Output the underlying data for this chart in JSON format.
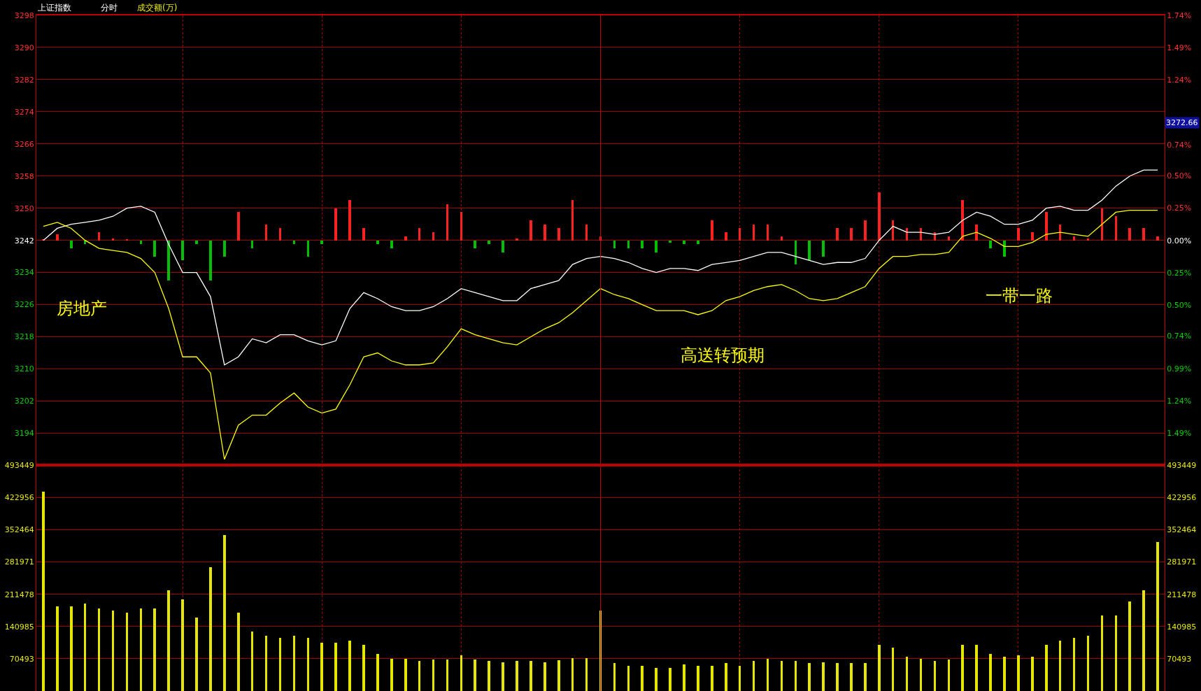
{
  "chart_data": [
    {
      "type": "line",
      "title": "上证指数",
      "subtitle": "分时",
      "categories": [
        null,
        null,
        null,
        null,
        null,
        null,
        null,
        null,
        null,
        null,
        null,
        null,
        null,
        null,
        null,
        null,
        null,
        null,
        null,
        null,
        null,
        null,
        null,
        null,
        null,
        null,
        null,
        null,
        null,
        null,
        null,
        null,
        null,
        null,
        null,
        null,
        null,
        null,
        null,
        null,
        null,
        null,
        null,
        null,
        null,
        null,
        null,
        null,
        null,
        null,
        null,
        null,
        null,
        null,
        null,
        null,
        null,
        null,
        null,
        null,
        null,
        null,
        null,
        null,
        null,
        null,
        null,
        null,
        null,
        null,
        null,
        null,
        null,
        null,
        null,
        null,
        null,
        null,
        null,
        null,
        null
      ],
      "series": [
        {
          "type": "bar",
          "base": [
            3242,
            3242,
            3242,
            3242,
            3242,
            3242,
            3242,
            3242,
            3242,
            3242,
            3242,
            3242,
            3242,
            3242,
            3242,
            3242,
            3242,
            3242,
            3242,
            3242,
            3242,
            3242,
            3242,
            3242,
            3242,
            3242,
            3242,
            3242,
            3242,
            3242,
            3242,
            3242,
            3242,
            3242,
            3242,
            3242,
            3242,
            3242,
            3242,
            3242,
            3242,
            3242,
            3242,
            3242,
            3242,
            3242,
            3242,
            3242,
            3242,
            3242,
            3242,
            3242,
            3242,
            3242,
            3242,
            3242,
            3242,
            3242,
            3242,
            3242,
            3242,
            3242,
            3242,
            3242,
            3242,
            3242,
            3242,
            3242,
            3242,
            3242,
            3242,
            3242,
            3242,
            3242,
            3242,
            3242,
            3242,
            3242,
            3242,
            3242,
            3242
          ],
          "values": [
            0.3,
            1.5,
            -2,
            -1,
            2,
            0.5,
            0.3,
            -1,
            -4,
            -10,
            -5,
            -1,
            -10,
            -4,
            7,
            -2,
            4,
            3,
            -1,
            -4,
            -1,
            8,
            10,
            3,
            -1,
            -2,
            1,
            3,
            2,
            9,
            7,
            -2,
            -1,
            -3,
            0.5,
            5,
            4,
            3,
            10,
            4,
            1,
            -2,
            -2,
            -2,
            -3,
            -0.5,
            -1,
            -1,
            5,
            2,
            3,
            4,
            4,
            1,
            -6,
            -5,
            -4,
            3,
            3,
            5,
            12,
            5,
            3,
            3,
            2,
            1,
            10,
            4,
            -2,
            -4,
            3,
            2,
            7,
            4,
            1,
            0.5,
            8,
            6,
            3,
            3,
            1
          ],
          "colors": [
            "#ff2020",
            "#ff2020",
            "#00c000",
            "#00c000",
            "#ff2020",
            "#ff2020",
            "#ff2020",
            "#00c000",
            "#00c000",
            "#00c000",
            "#00c000",
            "#00c000",
            "#00c000",
            "#00c000",
            "#ff2020",
            "#00c000",
            "#ff2020",
            "#ff2020",
            "#00c000",
            "#00c000",
            "#00c000",
            "#ff2020",
            "#ff2020",
            "#ff2020",
            "#00c000",
            "#00c000",
            "#ff2020",
            "#ff2020",
            "#ff2020",
            "#ff2020",
            "#ff2020",
            "#00c000",
            "#00c000",
            "#00c000",
            "#ff2020",
            "#ff2020",
            "#ff2020",
            "#ff2020",
            "#ff2020",
            "#ff2020",
            "#ff2020",
            "#00c000",
            "#00c000",
            "#00c000",
            "#00c000",
            "#00c000",
            "#00c000",
            "#00c000",
            "#ff2020",
            "#ff2020",
            "#ff2020",
            "#ff2020",
            "#ff2020",
            "#ff2020",
            "#00c000",
            "#00c000",
            "#00c000",
            "#ff2020",
            "#ff2020",
            "#ff2020",
            "#ff2020",
            "#ff2020",
            "#ff2020",
            "#ff2020",
            "#ff2020",
            "#ff2020",
            "#ff2020",
            "#ff2020",
            "#00c000",
            "#00c000",
            "#ff2020",
            "#ff2020",
            "#ff2020",
            "#ff2020",
            "#ff2020",
            "#ff2020",
            "#ff2020",
            "#ff2020",
            "#ff2020",
            "#ff2020",
            "#ff2020"
          ]
        },
        {
          "type": "line",
          "color": "#ffffff",
          "values": [
            3242,
            3245,
            3246,
            3246.5,
            3247,
            3248,
            3250,
            3250.5,
            3249,
            3241,
            3234,
            3234,
            3228,
            3211,
            3213,
            3217.5,
            3216.5,
            3218.5,
            3218.5,
            3217,
            3216,
            3217,
            3225,
            3229,
            3227.5,
            3225.5,
            3224.5,
            3224.5,
            3225.5,
            3227.5,
            3230,
            3229,
            3228,
            3227,
            3227,
            3230,
            3231,
            3232,
            3236,
            3237.5,
            3238,
            3237.5,
            3236.5,
            3235,
            3234,
            3235,
            3235,
            3234.5,
            3236,
            3236.5,
            3237,
            3238,
            3239,
            3239,
            3238,
            3237,
            3236,
            3236.5,
            3236.5,
            3237.5,
            3242,
            3245.5,
            3244,
            3244,
            3243.5,
            3244,
            3247,
            3249,
            3248,
            3246,
            3246,
            3247,
            3250,
            3250.5,
            3249.5,
            3249.5,
            3252,
            3255.5,
            3258,
            3259.5,
            3259.5
          ]
        },
        {
          "type": "line",
          "color": "#ffff00",
          "values": [
            3245.5,
            3246.5,
            3245,
            3242,
            3240,
            3239.5,
            3239,
            3237.5,
            3234,
            3225,
            3213,
            3213,
            3209,
            3187.5,
            3196,
            3198.5,
            3198.5,
            3201.5,
            3204,
            3200.5,
            3199,
            3200,
            3206,
            3213,
            3214,
            3212,
            3211,
            3211,
            3211.5,
            3215.5,
            3220,
            3218.5,
            3217.5,
            3216.5,
            3216,
            3218,
            3220,
            3221.5,
            3224,
            3227,
            3230,
            3228.5,
            3227.5,
            3226,
            3224.5,
            3224.5,
            3224.5,
            3223.5,
            3224.5,
            3227,
            3228,
            3229.5,
            3230.5,
            3231,
            3229.5,
            3227.5,
            3227,
            3227.5,
            3229,
            3230.5,
            3235,
            3238,
            3238,
            3238.5,
            3238.5,
            3239,
            3243,
            3244,
            3242.5,
            3240.5,
            3240.5,
            3241.5,
            3243.5,
            3244,
            3243.5,
            3243,
            3246,
            3249,
            3249.5,
            3249.5,
            3249.5
          ]
        }
      ],
      "ylim": [
        3186,
        3298
      ],
      "yticks": [
        3194,
        3202,
        3210,
        3218,
        3226,
        3234,
        3242,
        3250,
        3258,
        3266,
        3274,
        3282,
        3290,
        3298
      ],
      "y2lim": [
        -1.74,
        1.74
      ],
      "y2ticks": [
        {
          "value": -1.49,
          "label": "1.49%"
        },
        {
          "value": -1.24,
          "label": "1.24%"
        },
        {
          "value": -0.99,
          "label": "0.99%"
        },
        {
          "value": -0.74,
          "label": "0.74%"
        },
        {
          "value": -0.5,
          "label": "0.50%"
        },
        {
          "value": -0.25,
          "label": "0.25%"
        },
        {
          "value": 0,
          "label": "0.00%"
        },
        {
          "value": 0.25,
          "label": "0.25%"
        },
        {
          "value": 0.5,
          "label": "0.50%"
        },
        {
          "value": 0.74,
          "label": "0.74%"
        },
        {
          "value": 1.24,
          "label": "1.24%"
        },
        {
          "value": 1.49,
          "label": "1.49%"
        },
        {
          "value": 1.74,
          "label": "1.74%"
        }
      ],
      "annotations": [
        "成交额(万)",
        "房地产",
        "高送转预期",
        "一带一路",
        "3272.66"
      ],
      "grid": true,
      "tick_labels": "y"
    },
    {
      "type": "bar",
      "color": "#e6e600",
      "categories": [
        null,
        null,
        null,
        null,
        null,
        null,
        null,
        null,
        null,
        null,
        null,
        null,
        null,
        null,
        null,
        null,
        null,
        null,
        null,
        null,
        null,
        null,
        null,
        null,
        null,
        null,
        null,
        null,
        null,
        null,
        null,
        null,
        null,
        null,
        null,
        null,
        null,
        null,
        null,
        null,
        null,
        null,
        null,
        null,
        null,
        null,
        null,
        null,
        null,
        null,
        null,
        null,
        null,
        null,
        null,
        null,
        null,
        null,
        null,
        null,
        null,
        null,
        null,
        null,
        null,
        null,
        null,
        null,
        null,
        null,
        null,
        null,
        null,
        null,
        null,
        null,
        null,
        null,
        null,
        null,
        null
      ],
      "values": [
        435000,
        185000,
        185000,
        190000,
        180000,
        175000,
        170000,
        180000,
        180000,
        220000,
        200000,
        160000,
        270000,
        340000,
        170000,
        130000,
        120000,
        115000,
        120000,
        115000,
        105000,
        105000,
        110000,
        100000,
        80000,
        70000,
        70000,
        65000,
        68000,
        68000,
        78000,
        68000,
        65000,
        62000,
        65000,
        65000,
        62000,
        66000,
        72000,
        72000,
        175000,
        60000,
        55000,
        55000,
        50000,
        50000,
        58000,
        55000,
        55000,
        60000,
        55000,
        65000,
        70000,
        65000,
        65000,
        60000,
        62000,
        60000,
        60000,
        60000,
        100000,
        95000,
        75000,
        70000,
        65000,
        68000,
        100000,
        100000,
        80000,
        75000,
        78000,
        75000,
        100000,
        110000,
        115000,
        120000,
        165000,
        165000,
        195000,
        220000,
        325000
      ],
      "ylim": [
        0,
        493449
      ],
      "yticks": [
        70493,
        140985,
        211478,
        281971,
        352464,
        422956,
        493449
      ],
      "y2lim": [
        0,
        493449
      ],
      "y2ticks": [
        70493,
        140985,
        211478,
        281971,
        352464,
        422956,
        493449
      ],
      "grid": true,
      "tick_labels": "y"
    }
  ]
}
